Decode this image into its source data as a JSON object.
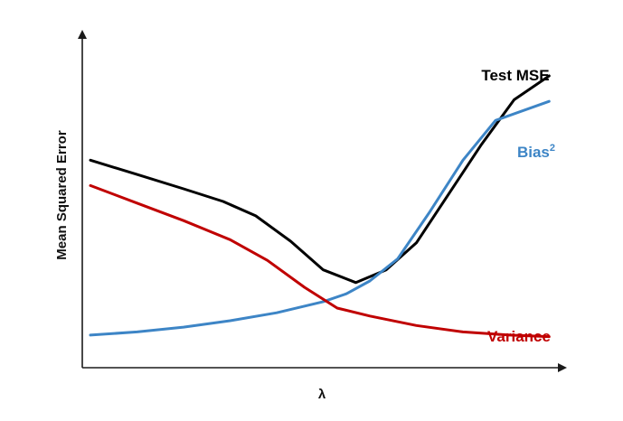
{
  "chart_data": {
    "type": "line",
    "title": "",
    "xlabel": "λ",
    "ylabel": "Mean Squared Error",
    "grid": false,
    "legend": "none",
    "xlim": [
      0,
      10
    ],
    "ylim": [
      0,
      10
    ],
    "series": [
      {
        "name": "Test MSE",
        "label_parts": [
          "Test MSE"
        ],
        "color": "#000000",
        "x": [
          0,
          1,
          2,
          2.85,
          3.55,
          4.3,
          5,
          5.7,
          6.35,
          7,
          7.7,
          8.4,
          9.1,
          9.85
        ],
        "y": [
          6.1,
          5.65,
          5.2,
          4.8,
          4.35,
          3.55,
          2.65,
          2.25,
          2.65,
          3.5,
          5.05,
          6.6,
          8.0,
          8.75
        ]
      },
      {
        "name": "Bias²",
        "label_parts": [
          "Bias",
          "2"
        ],
        "color": "#3d85c6",
        "x": [
          0,
          1,
          2,
          3,
          4,
          5,
          5.5,
          6,
          6.6,
          7.3,
          8,
          8.7,
          9.85
        ],
        "y": [
          0.6,
          0.7,
          0.85,
          1.05,
          1.3,
          1.65,
          1.9,
          2.3,
          3.0,
          4.5,
          6.1,
          7.35,
          7.95
        ]
      },
      {
        "name": "Variance",
        "label_parts": [
          "Variance"
        ],
        "color": "#c00000",
        "x": [
          0,
          1,
          2,
          3,
          3.8,
          4.6,
          5.3,
          6,
          7,
          8,
          9,
          9.85
        ],
        "y": [
          5.3,
          4.75,
          4.2,
          3.6,
          2.95,
          2.1,
          1.45,
          1.2,
          0.9,
          0.7,
          0.6,
          0.55
        ]
      }
    ]
  }
}
